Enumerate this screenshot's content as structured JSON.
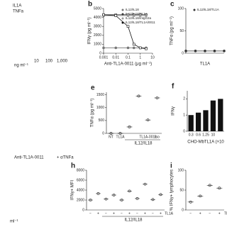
{
  "chart_data": [
    {
      "type": "partial",
      "panel": null,
      "texts": [
        "IL1A",
        "TNFa",
        "ng ml⁻¹",
        "10",
        "100",
        "1,000"
      ]
    },
    {
      "type": "line",
      "panel": "b",
      "xlabel": "Anti-TL1A-0011 (μg ml⁻¹)",
      "ylabel": "IFNγ (pg ml⁻¹)",
      "log_x": true,
      "x": [
        0.001,
        0.01,
        0.1,
        0.3,
        1,
        3
      ],
      "xlim": [
        0.001,
        10
      ],
      "xticks": [
        0.001,
        0.01,
        0.1,
        1,
        10
      ],
      "ylim": [
        0,
        5000
      ],
      "yticks": [
        0,
        1000,
        2000,
        3000,
        4000,
        5000
      ],
      "series": [
        {
          "name": "IL12/IL18",
          "color": "#777777",
          "values": [
            600,
            600,
            600,
            600,
            600,
            600
          ]
        },
        {
          "name": "IL12/IL18/TL1A",
          "color": "#333333",
          "values": [
            4300,
            4300,
            4300,
            4300,
            4300,
            4300
          ]
        },
        {
          "name": "IL12/IL18/mIgG2a",
          "color": "#999999",
          "values": [
            4200,
            4200,
            4200,
            4200,
            4200,
            4200
          ]
        },
        {
          "name": "IL12/IL18/TL1A/0011",
          "color": "#111111",
          "values": [
            4300,
            4200,
            3000,
            1000,
            600,
            500
          ]
        }
      ]
    },
    {
      "type": "line",
      "panel": "c",
      "xlabel": "TL1A",
      "ylabel": "TNFα (pg ml⁻¹)",
      "log_x": true,
      "x": [
        0.001,
        0.01,
        0.1,
        1,
        10
      ],
      "xlim": [
        0.001,
        10
      ],
      "ylim": [
        0,
        100
      ],
      "yticks": [
        0,
        50,
        100
      ],
      "series": [
        {
          "name": "IL12/IL18/TL1A",
          "color": "#333333",
          "values": [
            5,
            5,
            5,
            5,
            5
          ]
        }
      ]
    },
    {
      "type": "partial",
      "panel": null,
      "texts": [
        "Anti-TL1A-0011",
        "+ αTNFa"
      ]
    },
    {
      "type": "dots",
      "panel": "e",
      "ylabel": "TNFα (pg ml⁻¹)",
      "categories": [
        "NT",
        "TL1A",
        null,
        null,
        "TL1A-0011",
        "Iso"
      ],
      "values": [
        0,
        0,
        250,
        1450,
        520,
        1380
      ],
      "ylim": [
        0,
        1600
      ],
      "yticks": [
        0,
        500,
        1000,
        1500
      ],
      "group_label": "IL12/IL18",
      "color": "#222222"
    },
    {
      "type": "bar",
      "panel": "f",
      "ylabel": "IFNγ",
      "xlabel": "CHO-MbTL1A (×10",
      "categories": [
        "0.3",
        "0.6",
        "1.25",
        "10",
        null
      ],
      "values": [
        1.0,
        1.15,
        1.3,
        1.9,
        2.0
      ],
      "ylim": [
        0,
        2.5
      ],
      "yticks": [
        0,
        1,
        2
      ],
      "color": "#111111"
    },
    {
      "type": "partial",
      "panel": null,
      "texts": [
        "ml⁻¹"
      ]
    },
    {
      "type": "dots",
      "panel": "h",
      "ylabel": "IFNγ+ MFI",
      "categories": [
        "−",
        "+",
        "−",
        "+",
        "−",
        "+",
        "−",
        "+",
        "−",
        "+"
      ],
      "values": [
        2000,
        3300,
        2200,
        3000,
        2000,
        3800,
        2300,
        5200,
        2100,
        3100
      ],
      "ylim": [
        0,
        8000
      ],
      "yticks": [
        0,
        2000,
        4000,
        6000,
        8000
      ],
      "group_label": "IL12/IL18",
      "row_label": "TL1A",
      "color": "#222222"
    },
    {
      "type": "dots",
      "panel": "i",
      "ylabel": "% IFNγ+ lymphocytes",
      "categories": [
        "−",
        "+",
        "−",
        "+"
      ],
      "values": [
        20,
        35,
        62,
        55
      ],
      "ylim": [
        0,
        100
      ],
      "yticks": [
        0,
        50,
        100
      ],
      "row_label": "TL1A",
      "color": "#222222"
    }
  ]
}
